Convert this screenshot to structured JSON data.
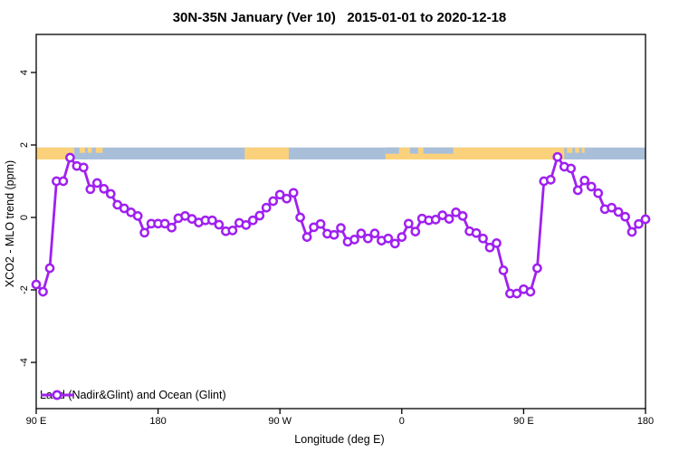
{
  "chart_data": {
    "type": "line",
    "title": "30N-35N January (Ver 10)   2015-01-01 to 2020-12-18",
    "xlabel": "Longitude (deg E)",
    "ylabel": "XCO2 - MLO trend (ppm)",
    "xlim": [
      90,
      540
    ],
    "ylim": [
      -5.3,
      5.05
    ],
    "grid": false,
    "legend_position": "bottom-left-inside",
    "x_axis_ticks": [
      {
        "x": 90,
        "label": "90 E"
      },
      {
        "x": 180,
        "label": "180"
      },
      {
        "x": 270,
        "label": "90 W"
      },
      {
        "x": 360,
        "label": "0"
      },
      {
        "x": 450,
        "label": "90 E"
      },
      {
        "x": 540,
        "label": "180"
      }
    ],
    "y_axis_ticks": [
      {
        "v": -4,
        "label": "-4"
      },
      {
        "v": -2,
        "label": "-2"
      },
      {
        "v": 0,
        "label": "0"
      },
      {
        "v": 2,
        "label": "2"
      },
      {
        "v": 4,
        "label": "4"
      }
    ],
    "series": [
      {
        "name": "Land (Nadir&Glint) and Ocean (Glint)",
        "color": "#A020F0",
        "marker": "open-circle",
        "x_start": 90,
        "x_step": 5,
        "values": [
          -1.85,
          -2.05,
          -1.4,
          1.0,
          1.0,
          1.65,
          1.42,
          1.38,
          0.78,
          0.95,
          0.79,
          0.65,
          0.35,
          0.25,
          0.14,
          0.04,
          -0.42,
          -0.17,
          -0.17,
          -0.17,
          -0.28,
          -0.02,
          0.04,
          -0.04,
          -0.14,
          -0.08,
          -0.08,
          -0.2,
          -0.38,
          -0.36,
          -0.15,
          -0.21,
          -0.08,
          0.05,
          0.27,
          0.45,
          0.63,
          0.52,
          0.68,
          0.0,
          -0.54,
          -0.27,
          -0.18,
          -0.45,
          -0.48,
          -0.29,
          -0.67,
          -0.61,
          -0.44,
          -0.58,
          -0.44,
          -0.64,
          -0.58,
          -0.72,
          -0.54,
          -0.17,
          -0.39,
          -0.03,
          -0.08,
          -0.06,
          0.06,
          -0.04,
          0.14,
          0.04,
          -0.38,
          -0.43,
          -0.58,
          -0.83,
          -0.71,
          -1.46,
          -2.1,
          -2.1,
          -1.98,
          -2.05,
          -1.4,
          1.0,
          1.04,
          1.67,
          1.4,
          1.35,
          0.75,
          1.02,
          0.85,
          0.67,
          0.23,
          0.27,
          0.15,
          0.02,
          -0.4,
          -0.18,
          -0.05
        ]
      }
    ],
    "legend": {
      "entries": [
        {
          "label": "Land (Nadir&Glint) and Ocean (Glint)",
          "color": "#A020F0"
        }
      ]
    },
    "map_strip": {
      "value_top": 1.93,
      "value_bottom": 1.6,
      "ocean_color": "#A9BFD9",
      "land_color": "#FBD27B",
      "land_segments_x": [
        [
          90,
          118
        ],
        [
          244,
          276.5
        ],
        [
          348,
          480
        ]
      ],
      "ocean_top_notches_x": [
        [
          348,
          358
        ],
        [
          366,
          372
        ],
        [
          376,
          398
        ]
      ],
      "island_patches_x": [
        [
          122,
          126
        ],
        [
          128,
          131
        ],
        [
          134,
          139
        ],
        [
          482,
          486
        ],
        [
          488,
          491
        ],
        [
          493,
          495
        ]
      ]
    }
  }
}
